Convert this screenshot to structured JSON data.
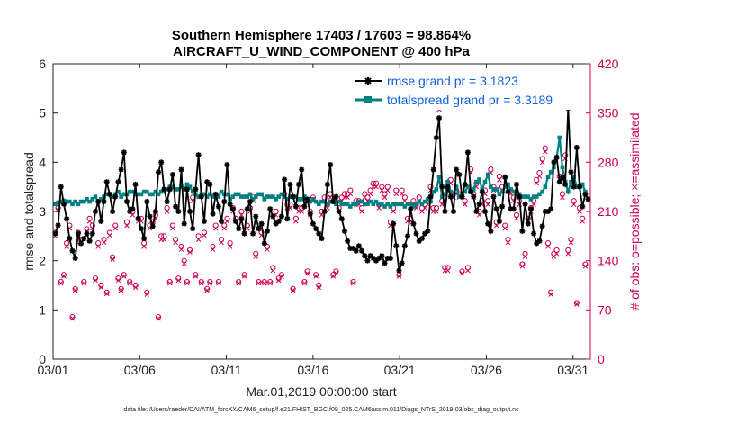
{
  "chart_data": {
    "type": "line",
    "title_line1": "Southern Hemisphere 17403 / 17603 = 98.864%",
    "title_line2": "AIRCRAFT_U_WIND_COMPONENT @ 400 hPa",
    "ylabel": "rmse and totalspread",
    "ylabel_right": "# of obs: o=possible; ×=assimilated",
    "xlabel": "Mar.01,2019 00:00:00 start",
    "footnote": "data file: /Users/raeder/DAI/ATM_forcXX/CAM6_setup/f.e21.FHIST_BGC.f09_025.CAM6assim.011/Diags_NTrS_2019-03/obs_diag_output.nc",
    "xlim": [
      0,
      31
    ],
    "ylim": [
      0,
      6
    ],
    "ylim_right": [
      0,
      420
    ],
    "x_ticks": [
      0,
      5,
      10,
      15,
      20,
      25,
      30
    ],
    "x_tick_labels": [
      "03/01",
      "03/06",
      "03/11",
      "03/16",
      "03/21",
      "03/26",
      "03/31"
    ],
    "y_ticks": [
      "0",
      "1",
      "2",
      "3",
      "4",
      "5",
      "6"
    ],
    "y_right_ticks": [
      "0",
      "70",
      "140",
      "210",
      "280",
      "350",
      "420"
    ],
    "legend_location": "top-right",
    "series": [
      {
        "name": "rmse grand pr = 3.1823",
        "color": "#000000",
        "values": [
          2.55,
          2.72,
          3.5,
          3.15,
          2.85,
          2.45,
          2.2,
          2.05,
          2.55,
          2.35,
          2.45,
          2.55,
          2.4,
          2.55,
          3.0,
          3.2,
          2.8,
          3.2,
          3.6,
          3.35,
          3.0,
          3.3,
          3.6,
          3.85,
          4.2,
          3.2,
          3.0,
          3.05,
          3.55,
          2.85,
          2.65,
          2.45,
          3.2,
          2.9,
          2.7,
          3.0,
          3.8,
          4.0,
          3.45,
          3.2,
          3.45,
          3.75,
          3.1,
          3.0,
          3.85,
          2.75,
          3.45,
          3.0,
          2.65,
          3.45,
          4.15,
          3.3,
          2.8,
          3.6,
          3.55,
          2.95,
          3.35,
          3.1,
          2.8,
          3.2,
          3.95,
          3.15,
          3.05,
          2.8,
          2.65,
          2.85,
          2.55,
          3.05,
          3.2,
          2.55,
          2.9,
          2.65,
          2.75,
          2.35,
          2.6,
          3.05,
          2.9,
          2.75,
          2.8,
          2.9,
          3.65,
          2.85,
          3.55,
          3.3,
          3.1,
          3.55,
          3.85,
          3.1,
          3.25,
          2.95,
          2.75,
          2.65,
          2.55,
          2.45,
          3.0,
          3.55,
          3.95,
          3.2,
          3.3,
          3.0,
          2.85,
          2.6,
          2.4,
          2.25,
          2.25,
          2.2,
          2.3,
          2.2,
          2.1,
          2.0,
          2.1,
          2.05,
          2.0,
          2.05,
          2.1,
          1.95,
          2.05,
          2.05,
          2.75,
          2.3,
          1.8,
          1.95,
          2.3,
          2.5,
          3.05,
          2.75,
          2.55,
          2.4,
          2.45,
          2.55,
          2.6,
          3.3,
          3.85,
          4.5,
          4.9,
          3.5,
          3.0,
          3.5,
          3.3,
          3.0,
          3.85,
          3.75,
          3.3,
          3.55,
          4.2,
          3.4,
          3.3,
          3.0,
          3.15,
          3.4,
          3.0,
          2.75,
          2.6,
          3.3,
          3.05,
          2.8,
          3.1,
          3.7,
          3.4,
          3.05,
          3.05,
          3.55,
          3.3,
          2.6,
          3.15,
          2.75,
          3.05,
          2.55,
          2.35,
          2.4,
          2.7,
          3.0,
          3.0,
          3.05,
          4.0,
          4.1,
          3.6,
          3.7,
          3.55,
          5.1,
          3.8,
          3.5,
          4.3,
          3.5,
          3.1,
          3.35,
          3.25
        ]
      },
      {
        "name": "totalspread grand pr = 3.3189",
        "color": "#008080",
        "values": [
          3.15,
          3.18,
          3.2,
          3.22,
          3.2,
          3.2,
          3.15,
          3.2,
          3.15,
          3.2,
          3.2,
          3.25,
          3.2,
          3.25,
          3.3,
          3.2,
          3.25,
          3.3,
          3.35,
          3.35,
          3.3,
          3.35,
          3.4,
          3.3,
          3.35,
          3.35,
          3.4,
          3.4,
          3.35,
          3.35,
          3.35,
          3.4,
          3.4,
          3.35,
          3.35,
          3.4,
          3.35,
          3.4,
          3.45,
          3.45,
          3.5,
          3.5,
          3.45,
          3.45,
          3.5,
          3.45,
          3.55,
          3.5,
          3.4,
          3.35,
          3.3,
          3.35,
          3.35,
          3.3,
          3.35,
          3.3,
          3.35,
          3.3,
          3.4,
          3.35,
          3.35,
          3.25,
          3.3,
          3.35,
          3.35,
          3.3,
          3.3,
          3.3,
          3.35,
          3.25,
          3.3,
          3.35,
          3.35,
          3.25,
          3.3,
          3.3,
          3.3,
          3.25,
          3.3,
          3.35,
          3.3,
          3.25,
          3.3,
          3.3,
          3.3,
          3.25,
          3.25,
          3.3,
          3.2,
          3.2,
          3.25,
          3.2,
          3.15,
          3.2,
          3.2,
          3.15,
          3.2,
          3.2,
          3.15,
          3.2,
          3.15,
          3.15,
          3.15,
          3.1,
          3.15,
          3.15,
          3.2,
          3.2,
          3.15,
          3.15,
          3.2,
          3.15,
          3.2,
          3.15,
          3.15,
          3.1,
          3.15,
          3.1,
          3.15,
          3.15,
          3.15,
          3.15,
          3.1,
          3.15,
          3.15,
          3.1,
          3.15,
          3.2,
          3.15,
          3.2,
          3.25,
          3.2,
          3.4,
          3.45,
          3.7,
          3.3,
          3.35,
          3.6,
          3.4,
          3.35,
          3.5,
          3.3,
          3.35,
          3.4,
          3.5,
          3.4,
          3.45,
          3.6,
          3.65,
          3.45,
          3.6,
          3.75,
          3.5,
          3.45,
          3.45,
          3.35,
          3.4,
          3.5,
          3.55,
          3.45,
          3.4,
          3.35,
          3.35,
          3.3,
          3.3,
          3.3,
          3.25,
          3.3,
          3.3,
          3.35,
          3.4,
          3.5,
          3.7,
          3.8,
          3.9,
          4.1,
          4.5,
          3.9,
          3.6,
          3.4,
          3.6,
          3.7,
          3.5,
          3.5,
          3.55,
          3.4
        ]
      },
      {
        "name": "# of obs possible",
        "color": "#cc0055",
        "axis": "right",
        "values": [
          180,
          215,
          110,
          120,
          165,
          190,
          60,
          100,
          180,
          170,
          110,
          185,
          200,
          190,
          115,
          165,
          105,
          170,
          95,
          180,
          145,
          190,
          115,
          100,
          120,
          195,
          110,
          210,
          105,
          200,
          200,
          165,
          95,
          190,
          195,
          205,
          60,
          175,
          175,
          215,
          110,
          190,
          170,
          115,
          160,
          140,
          110,
          155,
          230,
          120,
          175,
          110,
          180,
          100,
          110,
          160,
          190,
          110,
          170,
          190,
          200,
          165,
          215,
          200,
          110,
          210,
          120,
          190,
          215,
          230,
          150,
          110,
          180,
          110,
          160,
          110,
          130,
          210,
          115,
          120,
          235,
          220,
          220,
          100,
          200,
          215,
          215,
          110,
          125,
          210,
          230,
          120,
          105,
          210,
          230,
          220,
          235,
          120,
          125,
          215,
          230,
          235,
          235,
          240,
          110,
          225,
          225,
          215,
          235,
          230,
          240,
          250,
          250,
          220,
          245,
          235,
          245,
          195,
          215,
          240,
          120,
          240,
          230,
          200,
          200,
          225,
          220,
          230,
          215,
          220,
          225,
          245,
          215,
          215,
          360,
          225,
          130,
          130,
          255,
          235,
          240,
          235,
          125,
          225,
          130,
          270,
          235,
          250,
          210,
          225,
          240,
          225,
          270,
          245,
          195,
          260,
          245,
          190,
          170,
          240,
          230,
          205,
          225,
          135,
          150,
          200,
          215,
          225,
          255,
          265,
          285,
          300,
          165,
          95,
          150,
          155,
          260,
          235,
          290,
          155,
          170,
          225,
          80,
          215,
          200,
          135
        ]
      },
      {
        "name": "# of obs assimilated",
        "color": "#cc0055",
        "axis": "right",
        "values": [
          175,
          212,
          108,
          118,
          160,
          186,
          58,
          98,
          176,
          166,
          108,
          182,
          196,
          186,
          112,
          160,
          102,
          166,
          93,
          176,
          142,
          186,
          112,
          98,
          118,
          190,
          108,
          205,
          102,
          196,
          196,
          160,
          92,
          186,
          190,
          200,
          58,
          170,
          170,
          210,
          108,
          186,
          166,
          112,
          156,
          136,
          108,
          152,
          225,
          118,
          170,
          108,
          176,
          98,
          108,
          156,
          186,
          108,
          166,
          186,
          196,
          160,
          210,
          196,
          108,
          205,
          118,
          186,
          210,
          225,
          146,
          108,
          176,
          108,
          156,
          108,
          126,
          205,
          112,
          118,
          230,
          215,
          215,
          98,
          196,
          210,
          210,
          108,
          122,
          205,
          225,
          118,
          102,
          205,
          225,
          215,
          230,
          118,
          122,
          210,
          225,
          230,
          230,
          235,
          108,
          220,
          220,
          210,
          230,
          225,
          235,
          245,
          245,
          215,
          240,
          230,
          240,
          190,
          210,
          235,
          118,
          235,
          225,
          196,
          196,
          220,
          215,
          225,
          210,
          215,
          220,
          240,
          210,
          210,
          355,
          220,
          126,
          126,
          250,
          230,
          235,
          230,
          122,
          220,
          126,
          265,
          230,
          245,
          205,
          220,
          235,
          220,
          265,
          240,
          190,
          255,
          240,
          186,
          166,
          235,
          225,
          200,
          220,
          132,
          146,
          196,
          210,
          220,
          250,
          260,
          280,
          295,
          160,
          92,
          146,
          150,
          255,
          230,
          285,
          150,
          166,
          220,
          78,
          210,
          196,
          132
        ]
      }
    ]
  }
}
